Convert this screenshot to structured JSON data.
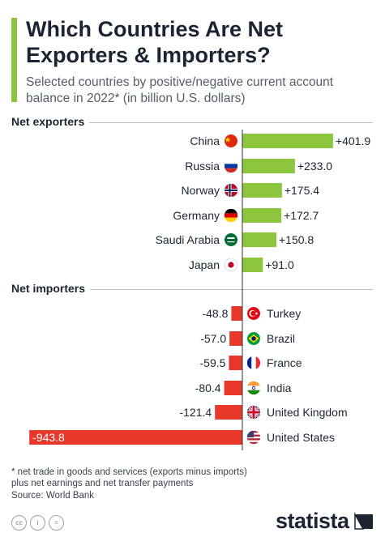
{
  "header": {
    "title": "Which Countries Are Net Exporters & Importers?",
    "subtitle": "Selected countries by positive/negative current account balance in 2022* (in billion U.S. dollars)"
  },
  "chart_data": {
    "type": "bar",
    "orientation": "horizontal",
    "groups": [
      {
        "label": "Net exporters",
        "categories": [
          "China",
          "Russia",
          "Norway",
          "Germany",
          "Saudi Arabia",
          "Japan"
        ],
        "values": [
          401.9,
          233.0,
          175.4,
          172.7,
          150.8,
          91.0
        ],
        "labels": [
          "+401.9",
          "+233.0",
          "+175.4",
          "+172.7",
          "+150.8",
          "+91.0"
        ],
        "color": "#8cc63f"
      },
      {
        "label": "Net importers",
        "categories": [
          "Turkey",
          "Brazil",
          "France",
          "India",
          "United Kingdom",
          "United States"
        ],
        "values": [
          -48.8,
          -57.0,
          -59.5,
          -80.4,
          -121.4,
          -943.8
        ],
        "labels": [
          "-48.8",
          "-57.0",
          "-59.5",
          "-80.4",
          "-121.4",
          "-943.8"
        ],
        "color": "#e8382c"
      }
    ],
    "flags": [
      "china-flag-icon",
      "russia-flag-icon",
      "norway-flag-icon",
      "germany-flag-icon",
      "saudi-arabia-flag-icon",
      "japan-flag-icon",
      "turkey-flag-icon",
      "brazil-flag-icon",
      "france-flag-icon",
      "india-flag-icon",
      "united-kingdom-flag-icon",
      "united-states-flag-icon"
    ]
  },
  "footer": {
    "footnote": "* net trade in goods and services (exports minus imports)\n   plus net earnings and net transfer payments",
    "source": "Source: World Bank",
    "brand": "statista",
    "cc_icons": [
      "cc",
      "i",
      "="
    ]
  }
}
